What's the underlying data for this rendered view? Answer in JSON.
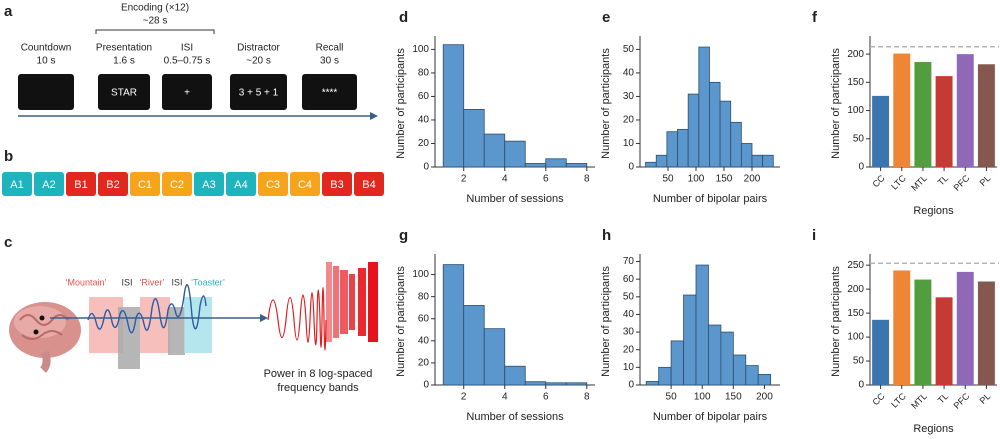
{
  "panel_a": {
    "label": "a",
    "encoding": "Encoding (×12)",
    "encoding_duration": "~28 s",
    "stages": [
      {
        "name": "Countdown",
        "duration": "10 s"
      },
      {
        "name": "Presentation",
        "duration": "1.6 s",
        "screen": "STAR"
      },
      {
        "name": "ISI",
        "duration": "0.5–0.75 s",
        "screen": "+"
      },
      {
        "name": "Distractor",
        "duration": "~20 s",
        "screen": "3 + 5 + 1"
      },
      {
        "name": "Recall",
        "duration": "30 s",
        "screen": "****"
      }
    ]
  },
  "panel_b": {
    "label": "b",
    "items": [
      {
        "text": "A1",
        "color": "#1db4bd"
      },
      {
        "text": "A2",
        "color": "#1db4bd"
      },
      {
        "text": "B1",
        "color": "#e0281f"
      },
      {
        "text": "B2",
        "color": "#e0281f"
      },
      {
        "text": "C1",
        "color": "#f6a41c"
      },
      {
        "text": "C2",
        "color": "#f6a41c"
      },
      {
        "text": "A3",
        "color": "#1db4bd"
      },
      {
        "text": "A4",
        "color": "#1db4bd"
      },
      {
        "text": "C3",
        "color": "#f6a41c"
      },
      {
        "text": "C4",
        "color": "#f6a41c"
      },
      {
        "text": "B3",
        "color": "#e0281f"
      },
      {
        "text": "B4",
        "color": "#e0281f"
      }
    ]
  },
  "panel_c": {
    "label": "c",
    "words": [
      {
        "text": "‘Mountain’",
        "color": "#e8524a"
      },
      {
        "text": "ISI",
        "color": "#333333"
      },
      {
        "text": "‘River’",
        "color": "#e8524a"
      },
      {
        "text": "ISI",
        "color": "#333333"
      },
      {
        "text": "‘Toaster’",
        "color": "#2bb8c9"
      }
    ],
    "caption": [
      "Power in 8 log-spaced",
      "frequency bands"
    ]
  },
  "chart_data": [
    {
      "type": "histogram",
      "label": "d",
      "xlabel": "Number of sessions",
      "ylabel": "Number of participants",
      "bins": [
        1,
        2,
        3,
        4,
        5,
        6,
        7,
        8
      ],
      "values": [
        104,
        49,
        28,
        22,
        3,
        7,
        3
      ],
      "xlim": [
        0.6,
        8.4
      ],
      "xticks": [
        2,
        4,
        6,
        8
      ],
      "ylim": [
        0,
        108
      ],
      "yticks": [
        0,
        20,
        40,
        60,
        80,
        100
      ],
      "color": "#5b97cc"
    },
    {
      "type": "histogram",
      "label": "e",
      "xlabel": "Number of bipolar pairs",
      "ylabel": "Number of participants",
      "bins": [
        10,
        29,
        48,
        67,
        86,
        105,
        124,
        143,
        162,
        181,
        200,
        219,
        238
      ],
      "values": [
        2,
        5,
        15,
        16,
        31,
        51,
        36,
        28,
        19,
        10,
        5,
        5
      ],
      "xlim": [
        0,
        250
      ],
      "xticks": [
        50,
        100,
        150,
        200
      ],
      "ylim": [
        0,
        54
      ],
      "yticks": [
        0,
        10,
        20,
        30,
        40,
        50
      ],
      "color": "#5b97cc"
    },
    {
      "type": "bar",
      "label": "f",
      "xlabel": "Regions",
      "ylabel": "Number of participants",
      "categories": [
        "CC",
        "LTC",
        "MTL",
        "TL",
        "PFC",
        "PL"
      ],
      "values": [
        126,
        201,
        186,
        161,
        200,
        182
      ],
      "colors": [
        "#3a75af",
        "#ef8636",
        "#529e3e",
        "#c53a32",
        "#8d69b8",
        "#84584e"
      ],
      "reference_line": 213,
      "ylim": [
        0,
        225
      ],
      "yticks": [
        0,
        50,
        100,
        150,
        200
      ]
    },
    {
      "type": "histogram",
      "label": "g",
      "xlabel": "Number of sessions",
      "ylabel": "Number of participants",
      "bins": [
        1,
        2,
        3,
        4,
        5,
        6,
        7,
        8
      ],
      "values": [
        109,
        72,
        51,
        17,
        3,
        2,
        2
      ],
      "xlim": [
        0.6,
        8.4
      ],
      "xticks": [
        2,
        4,
        6,
        8
      ],
      "ylim": [
        0,
        115
      ],
      "yticks": [
        0,
        20,
        40,
        60,
        80,
        100
      ],
      "color": "#5b97cc"
    },
    {
      "type": "histogram",
      "label": "h",
      "xlabel": "Number of bipolar pairs",
      "ylabel": "Number of participants",
      "bins": [
        10,
        30,
        50,
        70,
        90,
        110,
        130,
        150,
        170,
        190,
        210
      ],
      "values": [
        2,
        10,
        25,
        51,
        68,
        34,
        30,
        17,
        11,
        6
      ],
      "xlim": [
        0,
        225
      ],
      "xticks": [
        50,
        100,
        150,
        200
      ],
      "ylim": [
        0,
        72
      ],
      "yticks": [
        0,
        10,
        20,
        30,
        40,
        50,
        60,
        70
      ],
      "color": "#5b97cc"
    },
    {
      "type": "bar",
      "label": "i",
      "xlabel": "Regions",
      "ylabel": "Number of participants",
      "categories": [
        "CC",
        "LTC",
        "MTL",
        "TL",
        "PFC",
        "PL"
      ],
      "values": [
        136,
        239,
        220,
        183,
        236,
        216
      ],
      "colors": [
        "#3a75af",
        "#ef8636",
        "#529e3e",
        "#c53a32",
        "#8d69b8",
        "#84584e"
      ],
      "reference_line": 254,
      "ylim": [
        0,
        265
      ],
      "yticks": [
        0,
        50,
        100,
        150,
        200,
        250
      ]
    }
  ]
}
